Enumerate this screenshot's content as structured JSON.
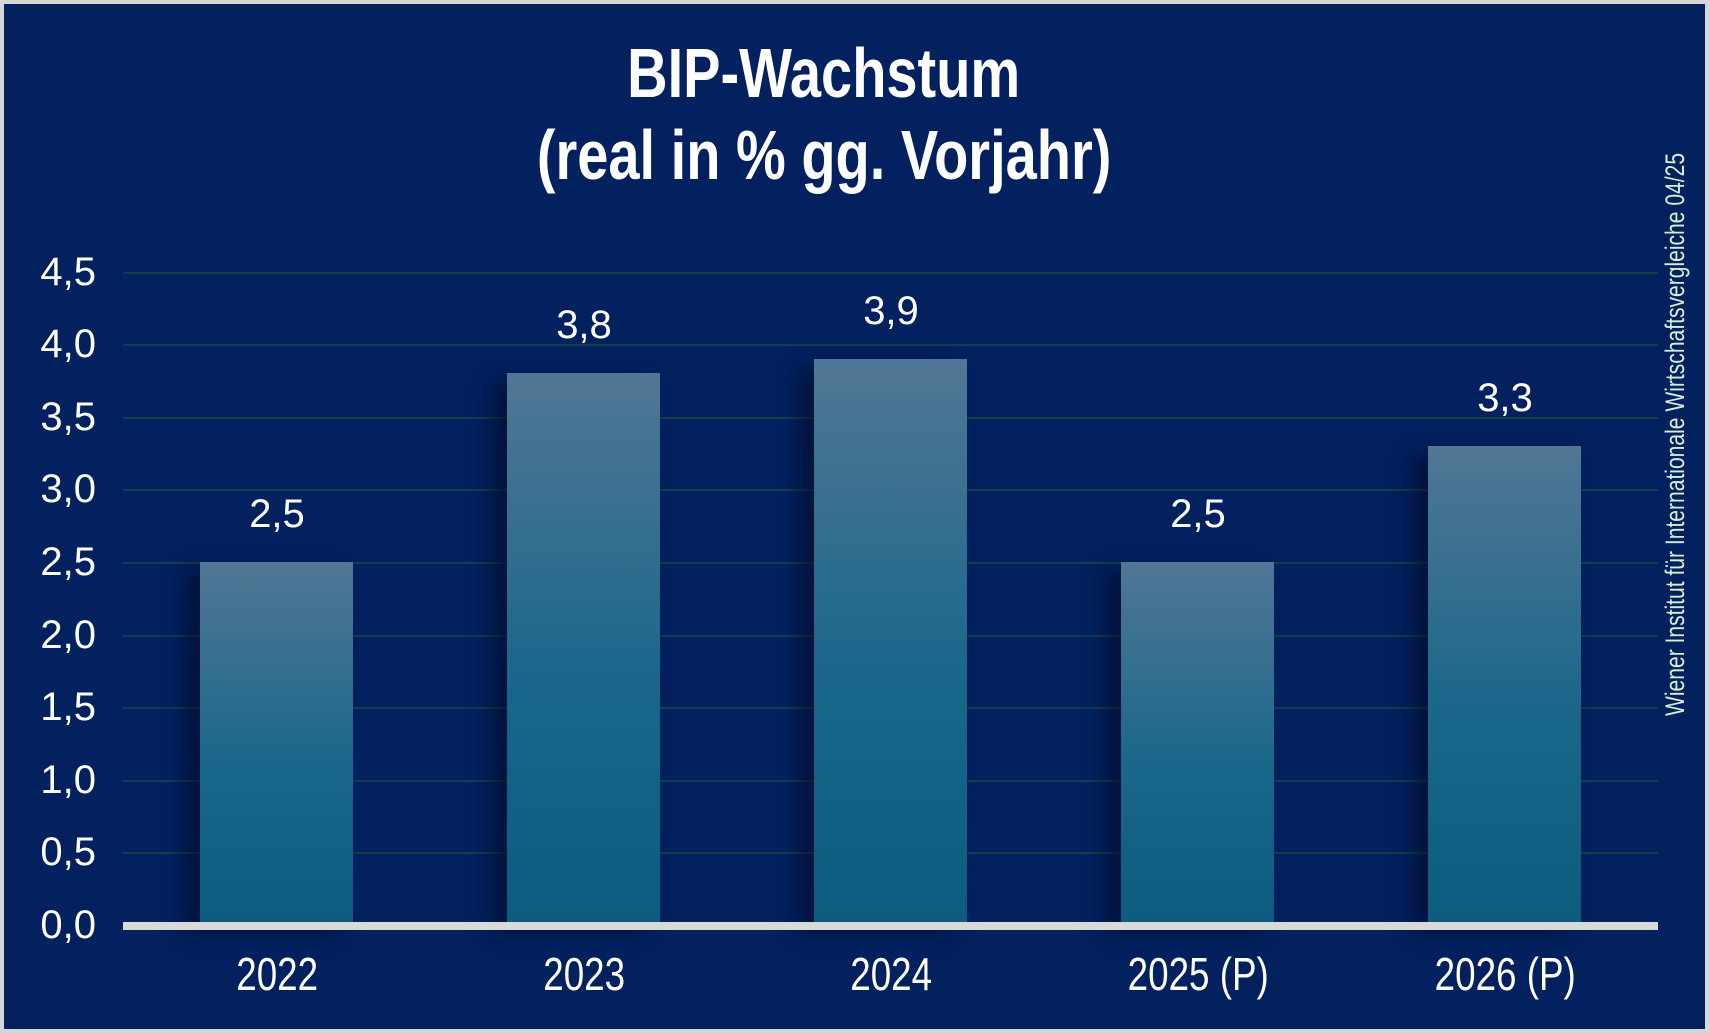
{
  "title": {
    "line1": "BIP-Wachstum",
    "line2": "(real in % gg. Vorjahr)"
  },
  "source_note": "Wiener Institut für Internationale Wirtschaftsvergleiche 04/25",
  "chart_data": {
    "type": "bar",
    "title": "BIP-Wachstum (real in % gg. Vorjahr)",
    "categories": [
      "2022",
      "2023",
      "2024",
      "2025 (P)",
      "2026 (P)"
    ],
    "values": [
      2.5,
      3.8,
      3.9,
      2.5,
      3.3
    ],
    "value_labels": [
      "2,5",
      "3,8",
      "3,9",
      "2,5",
      "3,3"
    ],
    "xlabel": "",
    "ylabel": "",
    "ylim": [
      0,
      4.5
    ],
    "ytick_step": 0.5,
    "ytick_labels": [
      "0,0",
      "0,5",
      "1,0",
      "1,5",
      "2,0",
      "2,5",
      "3,0",
      "3,5",
      "4,0",
      "4,5"
    ],
    "grid": true,
    "legend_position": "none"
  },
  "colors": {
    "background": "#02215e",
    "bar_gradient_top": "#517795",
    "bar_gradient_bottom": "#0b5c7e",
    "gridline": "#11404a",
    "axis_line": "#d9d9d9",
    "label_text": "#ffffff",
    "source_text": "#d6edd3",
    "frame_border": "#d6d6d6"
  }
}
